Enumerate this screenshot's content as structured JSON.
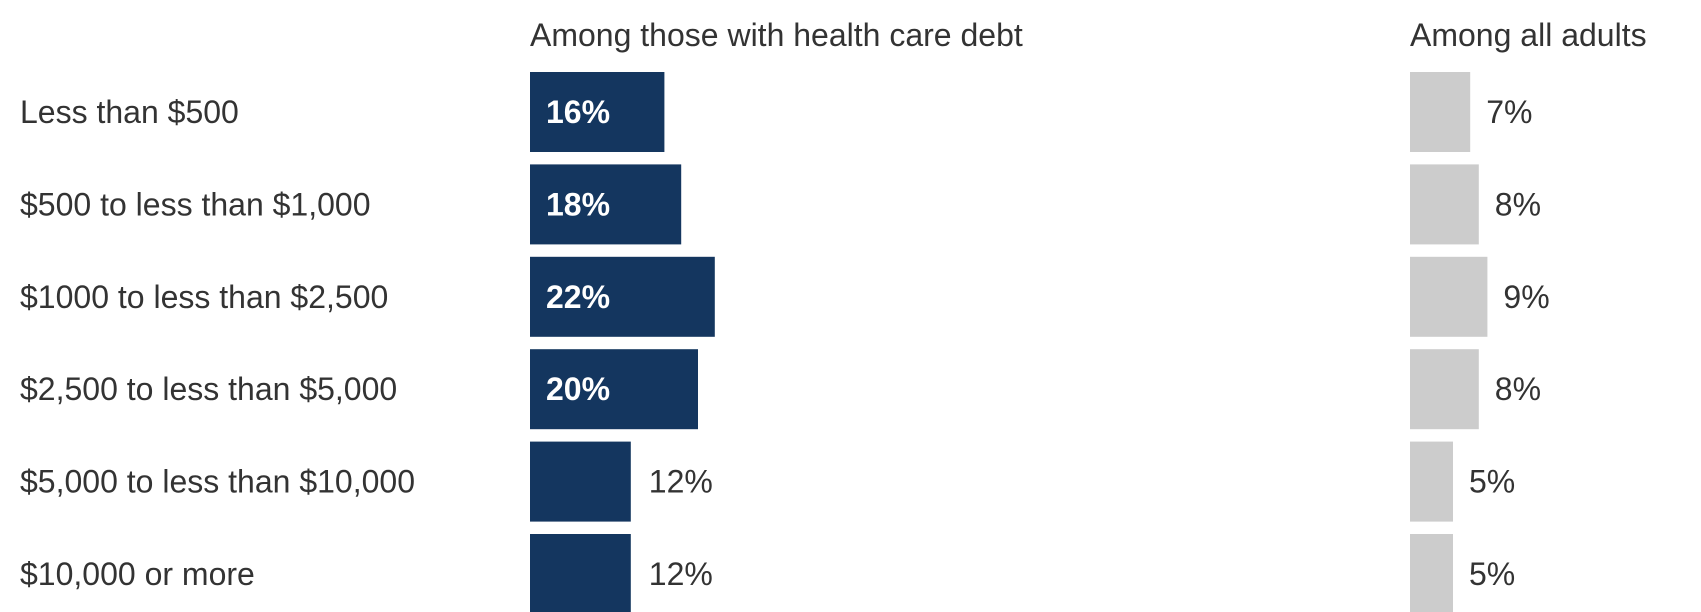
{
  "chart_data": {
    "type": "bar",
    "orientation": "horizontal",
    "categories": [
      "Less than $500",
      "$500 to less than $1,000",
      "$1000 to less than $2,500",
      "$2,500 to less than $5,000",
      "$5,000 to less than $10,000",
      "$10,000 or more"
    ],
    "series": [
      {
        "name": "Among those with health care debt",
        "values": [
          16,
          18,
          22,
          20,
          12,
          12
        ],
        "labels": [
          "16%",
          "18%",
          "22%",
          "20%",
          "12%",
          "12%"
        ],
        "color": "#14365f"
      },
      {
        "name": "Among all adults",
        "values": [
          7,
          8,
          9,
          8,
          5,
          5
        ],
        "labels": [
          "7%",
          "8%",
          "9%",
          "8%",
          "5%",
          "5%"
        ],
        "color": "#cccccc"
      }
    ],
    "value_unit": "%",
    "grid": false,
    "legend": "none"
  }
}
